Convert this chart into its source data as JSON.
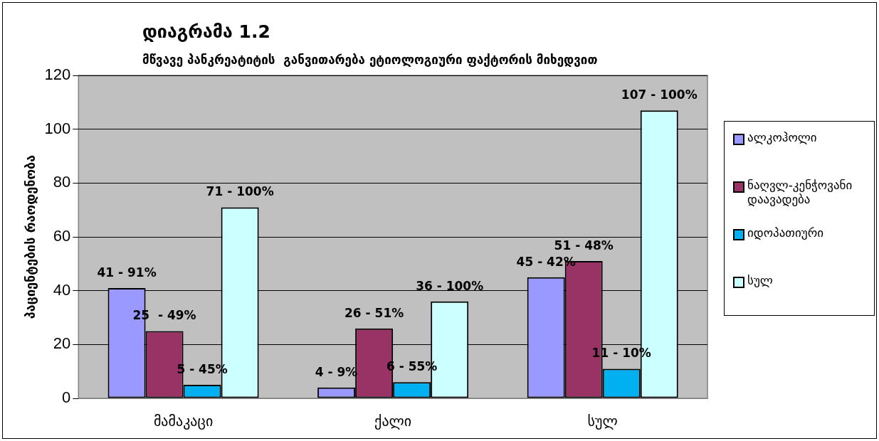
{
  "chart_data": {
    "type": "bar",
    "title": "დიაგრამა 1.2",
    "subtitle": "მწვავე პანკრეატიტის  განვითარება ეტიოლოგიური ფაქტორის მიხედვით",
    "ylabel": "პაციენტების რაოდენობა",
    "categories": [
      "მამაკაცი",
      "ქალი",
      "სულ"
    ],
    "series": [
      {
        "name": "ალკოჰოლი",
        "color": "#9999ff",
        "values": [
          41,
          4,
          45
        ],
        "value_labels": [
          "41 - 91%",
          "4 - 9%",
          "45 - 42%"
        ]
      },
      {
        "name": "ნაღვლ-კენჭოვანი დაავადება",
        "color": "#993366",
        "values": [
          25,
          26,
          51
        ],
        "value_labels": [
          "25  - 49%",
          "26 - 51%",
          "51 - 48%"
        ]
      },
      {
        "name": "იდოპათიური",
        "color": "#00b0f0",
        "values": [
          5,
          6,
          11
        ],
        "value_labels": [
          "5 - 45%",
          "6 - 55%",
          "11 - 10%"
        ]
      },
      {
        "name": "სულ",
        "color": "#ccffff",
        "values": [
          71,
          36,
          107
        ],
        "value_labels": [
          "71 - 100%",
          "36 - 100%",
          "107 - 100%"
        ]
      }
    ],
    "ylim": [
      0,
      120
    ],
    "yticks": [
      0,
      20,
      40,
      60,
      80,
      100,
      120
    ],
    "grid": "y",
    "legend": "right"
  }
}
